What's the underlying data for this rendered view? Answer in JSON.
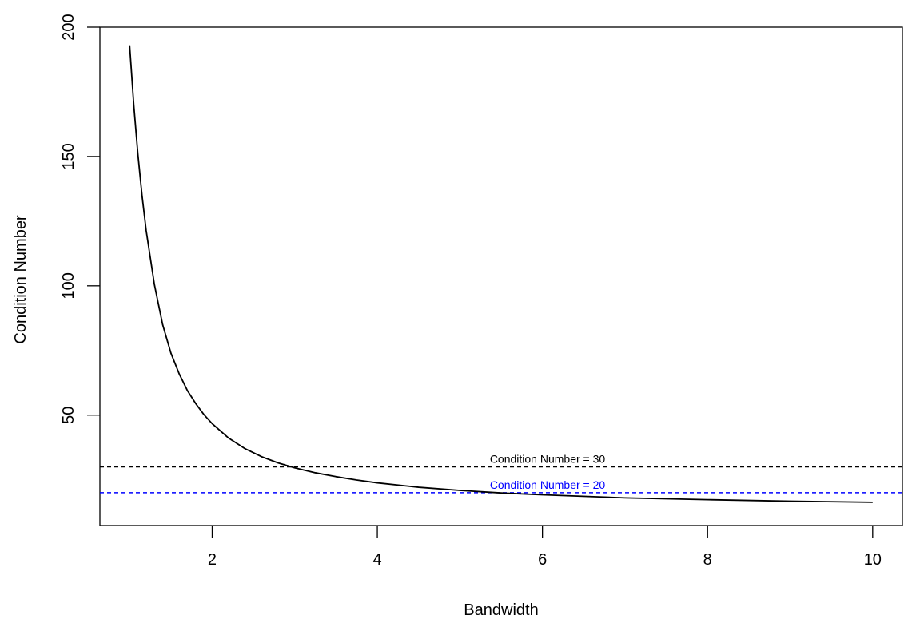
{
  "chart_data": {
    "type": "line",
    "title": "",
    "xlabel": "Bandwidth",
    "ylabel": "Condition Number",
    "xlim": [
      0.64,
      10.36
    ],
    "ylim": [
      7.3,
      200
    ],
    "x_ticks": [
      2,
      4,
      6,
      8,
      10
    ],
    "y_ticks": [
      50,
      100,
      150,
      200
    ],
    "x_tick_labels": [
      "2",
      "4",
      "6",
      "8",
      "10"
    ],
    "y_tick_labels": [
      "50",
      "100",
      "150",
      "200"
    ],
    "grid": false,
    "legend": "none",
    "series": [
      {
        "color": "#000000",
        "line_style": "solid",
        "x": [
          1.0,
          1.05,
          1.1,
          1.15,
          1.2,
          1.3,
          1.4,
          1.5,
          1.6,
          1.7,
          1.8,
          1.9,
          2.0,
          2.2,
          2.4,
          2.6,
          2.8,
          3.0,
          3.25,
          3.5,
          3.75,
          4.0,
          4.5,
          5.0,
          5.5,
          6.0,
          7.0,
          8.0,
          9.0,
          10.0
        ],
        "y": [
          193,
          170,
          151,
          135,
          121.5,
          100.5,
          85,
          74,
          66,
          59.5,
          54.5,
          50.2,
          46.7,
          41.1,
          37,
          33.9,
          31.5,
          29.6,
          27.7,
          26.2,
          24.9,
          23.8,
          22.1,
          20.9,
          19.9,
          19.2,
          18,
          17.3,
          16.7,
          16.3
        ]
      }
    ],
    "reference_lines": [
      {
        "y": 30,
        "label": "Condition Number = 30",
        "color": "#000000",
        "line_style": "dashed"
      },
      {
        "y": 20,
        "label": "Condition Number = 20",
        "color": "#0000ff",
        "line_style": "dashed"
      }
    ]
  }
}
